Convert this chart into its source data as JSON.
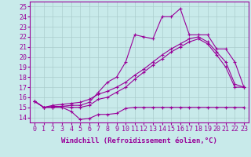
{
  "background_color": "#c8eaea",
  "grid_color": "#aacccc",
  "line_color": "#990099",
  "xlabel": "Windchill (Refroidissement éolien,°C)",
  "xlabel_fontsize": 6.5,
  "tick_fontsize": 6.0,
  "ylim": [
    13.5,
    25.5
  ],
  "xlim": [
    -0.5,
    23.5
  ],
  "yticks": [
    14,
    15,
    16,
    17,
    18,
    19,
    20,
    21,
    22,
    23,
    24,
    25
  ],
  "xticks": [
    0,
    1,
    2,
    3,
    4,
    5,
    6,
    7,
    8,
    9,
    10,
    11,
    12,
    13,
    14,
    15,
    16,
    17,
    18,
    19,
    20,
    21,
    22,
    23
  ],
  "series1_x": [
    0,
    1,
    2,
    3,
    4,
    5,
    6,
    7,
    8,
    9,
    10,
    11,
    12,
    13,
    14,
    15,
    16,
    17,
    18,
    19,
    20,
    21,
    22,
    23
  ],
  "series1_y": [
    15.6,
    15.0,
    15.0,
    15.0,
    14.6,
    13.8,
    13.9,
    14.3,
    14.3,
    14.4,
    14.9,
    15.0,
    15.0,
    15.0,
    15.0,
    15.0,
    15.0,
    15.0,
    15.0,
    15.0,
    15.0,
    15.0,
    15.0,
    15.0
  ],
  "series2_x": [
    0,
    1,
    2,
    3,
    4,
    5,
    6,
    7,
    8,
    9,
    10,
    11,
    12,
    13,
    14,
    15,
    16,
    17,
    18,
    19,
    20,
    21,
    22,
    23
  ],
  "series2_y": [
    15.6,
    15.0,
    15.2,
    15.3,
    15.4,
    15.5,
    15.8,
    16.3,
    16.6,
    17.0,
    17.5,
    18.2,
    18.8,
    19.5,
    20.2,
    20.8,
    21.3,
    21.8,
    22.0,
    21.5,
    20.5,
    19.5,
    17.3,
    17.0
  ],
  "series3_x": [
    0,
    1,
    2,
    3,
    4,
    5,
    6,
    7,
    8,
    9,
    10,
    11,
    12,
    13,
    14,
    15,
    16,
    17,
    18,
    19,
    20,
    21,
    22,
    23
  ],
  "series3_y": [
    15.6,
    15.0,
    15.1,
    15.1,
    15.2,
    15.2,
    15.5,
    16.5,
    17.5,
    18.0,
    19.5,
    22.2,
    22.0,
    21.8,
    24.0,
    24.0,
    24.8,
    22.2,
    22.2,
    22.2,
    20.8,
    20.8,
    19.5,
    17.0
  ],
  "series4_x": [
    0,
    1,
    2,
    3,
    4,
    5,
    6,
    7,
    8,
    9,
    10,
    11,
    12,
    13,
    14,
    15,
    16,
    17,
    18,
    19,
    20,
    21,
    22,
    23
  ],
  "series4_y": [
    15.6,
    15.0,
    15.0,
    15.1,
    15.0,
    15.0,
    15.2,
    15.8,
    16.0,
    16.5,
    17.0,
    17.8,
    18.5,
    19.2,
    19.8,
    20.5,
    21.0,
    21.5,
    21.8,
    21.3,
    20.2,
    19.0,
    17.0,
    17.0
  ]
}
